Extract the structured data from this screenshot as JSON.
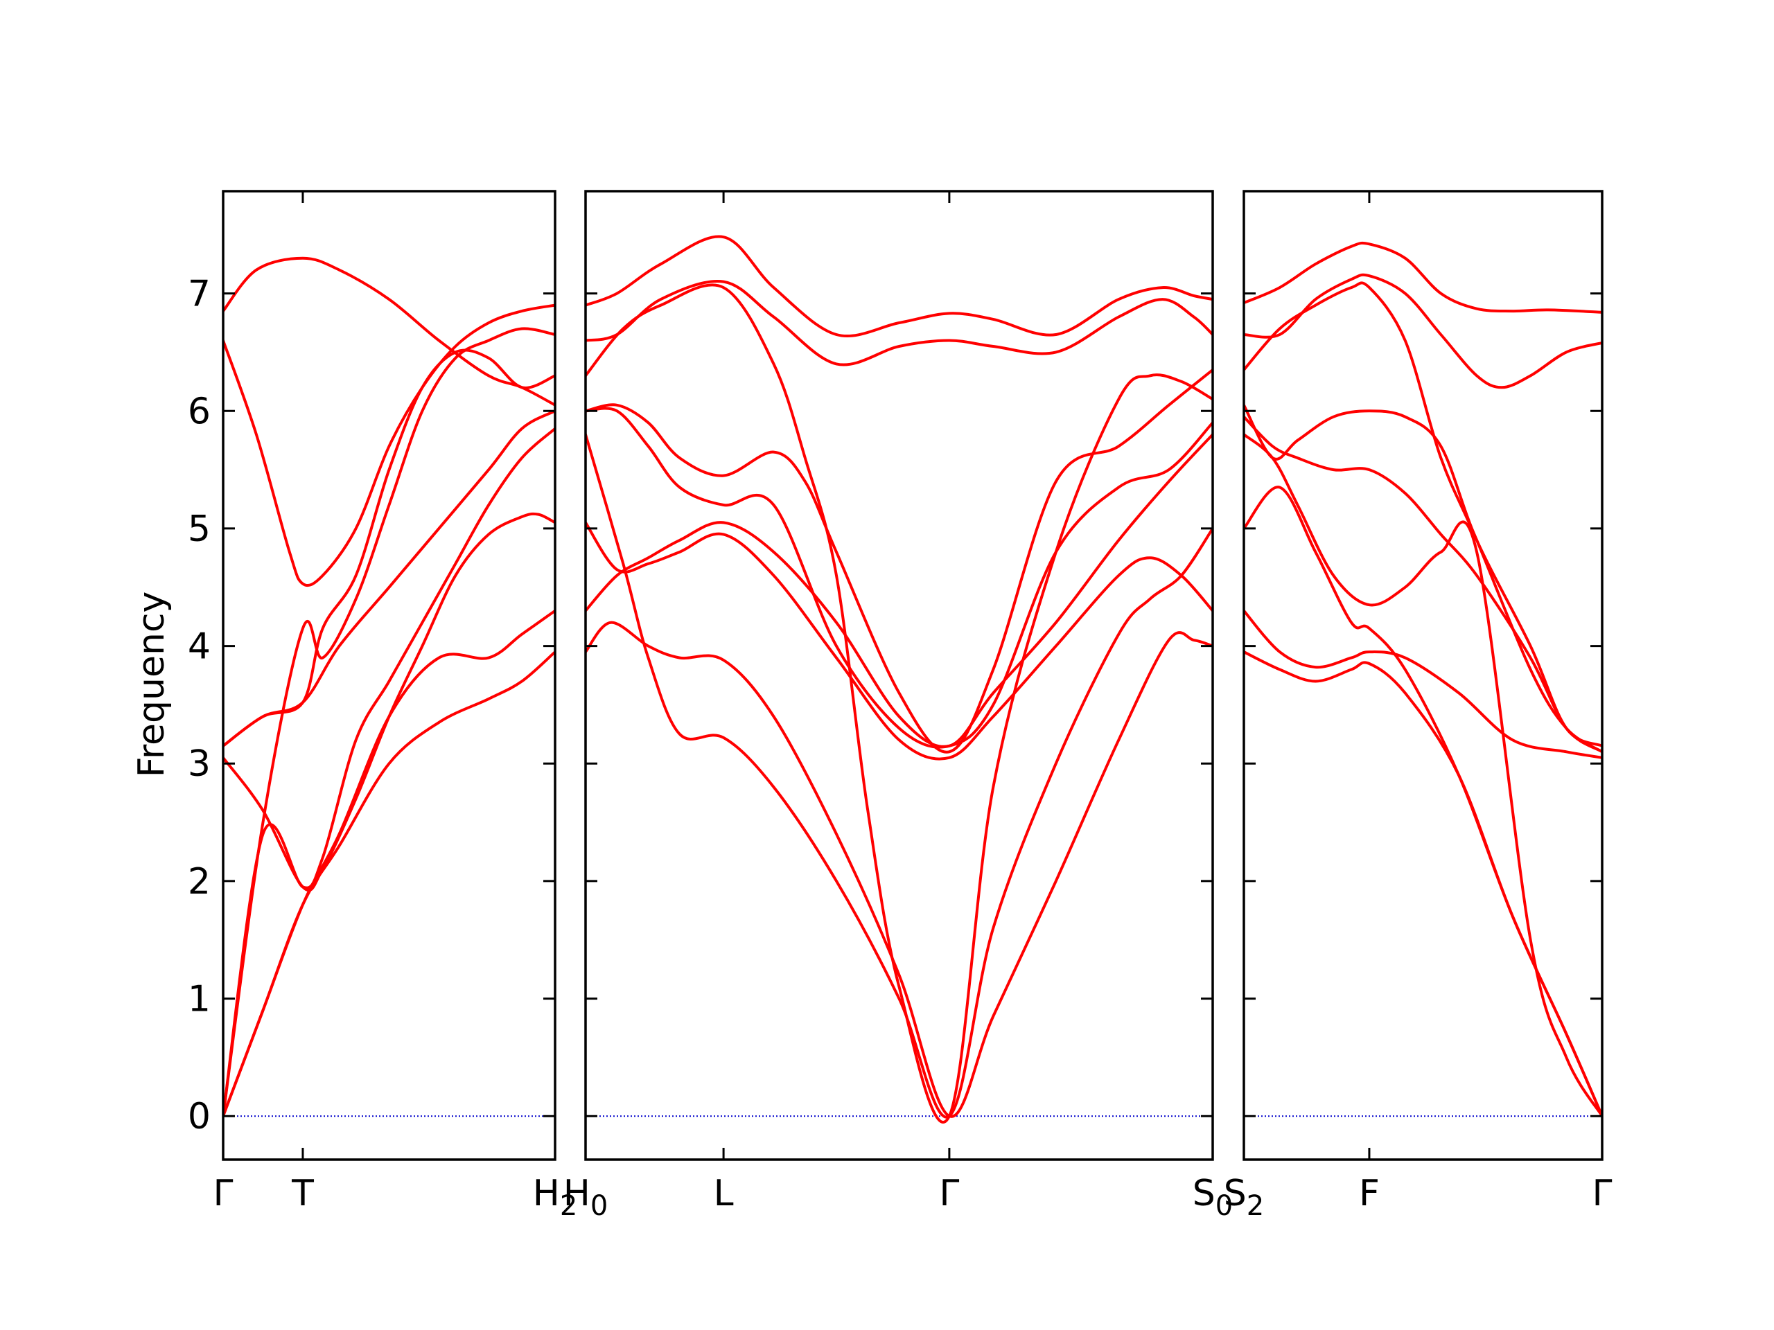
{
  "chart_data": {
    "type": "line",
    "ylabel": "Frequency",
    "ylim": [
      -0.37,
      7.87
    ],
    "yticks": [
      0,
      1,
      2,
      3,
      4,
      5,
      6,
      7
    ],
    "colors": {
      "bands": "#ff0000",
      "zero_line": "#0000cc",
      "axes": "#000000"
    },
    "grid": false,
    "zero_line": 0,
    "panels": [
      {
        "id": "panel-1",
        "xlim": [
          0,
          1
        ],
        "ticks": [
          {
            "x": 0.0,
            "label": "Γ",
            "sub": ""
          },
          {
            "x": 0.24,
            "label": "T",
            "sub": ""
          },
          {
            "x": 1.0,
            "label": "H",
            "sub": "2"
          }
        ],
        "series": [
          {
            "x": [
              0,
              0.12,
              0.24,
              0.35,
              0.5,
              0.65,
              0.8,
              0.9,
              1.0
            ],
            "y": [
              0.0,
              0.9,
              1.8,
              2.3,
              3.0,
              3.35,
              3.55,
              3.7,
              3.95
            ]
          },
          {
            "x": [
              0,
              0.12,
              0.24,
              0.35,
              0.5,
              0.65,
              0.8,
              0.9,
              1.0
            ],
            "y": [
              0.0,
              0.9,
              1.8,
              2.4,
              3.4,
              3.9,
              3.9,
              4.1,
              4.3
            ]
          },
          {
            "x": [
              0,
              0.12,
              0.24,
              0.3,
              0.4,
              0.5,
              0.6,
              0.7,
              0.8,
              0.9,
              0.95,
              1.0
            ],
            "y": [
              3.05,
              2.6,
              1.95,
              2.1,
              2.7,
              3.4,
              4.0,
              4.6,
              4.95,
              5.1,
              5.12,
              5.05
            ]
          },
          {
            "x": [
              0,
              0.12,
              0.24,
              0.3,
              0.4,
              0.5,
              0.6,
              0.7,
              0.8,
              0.9,
              1.0
            ],
            "y": [
              0.0,
              2.4,
              1.95,
              2.2,
              3.2,
              3.7,
              4.2,
              4.7,
              5.2,
              5.6,
              5.85
            ]
          },
          {
            "x": [
              0,
              0.12,
              0.24,
              0.35,
              0.5,
              0.65,
              0.8,
              0.9,
              1.0
            ],
            "y": [
              3.15,
              3.4,
              3.52,
              4.0,
              4.5,
              5.0,
              5.5,
              5.85,
              6.0
            ]
          },
          {
            "x": [
              0,
              0.12,
              0.24,
              0.3,
              0.4,
              0.5,
              0.6,
              0.7,
              0.8,
              0.9,
              1.0
            ],
            "y": [
              0.0,
              2.5,
              4.15,
              3.9,
              4.4,
              5.2,
              6.0,
              6.45,
              6.6,
              6.7,
              6.65
            ]
          },
          {
            "x": [
              0,
              0.12,
              0.24,
              0.3,
              0.4,
              0.5,
              0.6,
              0.7,
              0.8,
              0.9,
              1.0
            ],
            "y": [
              3.15,
              3.4,
              3.52,
              4.15,
              4.6,
              5.5,
              6.2,
              6.5,
              6.45,
              6.2,
              6.3
            ]
          },
          {
            "x": [
              0,
              0.1,
              0.2,
              0.24,
              0.3,
              0.4,
              0.5,
              0.6,
              0.7,
              0.8,
              0.9,
              1.0
            ],
            "y": [
              6.6,
              5.8,
              4.8,
              4.53,
              4.6,
              5.0,
              5.7,
              6.2,
              6.55,
              6.75,
              6.85,
              6.9
            ]
          },
          {
            "x": [
              0,
              0.1,
              0.24,
              0.35,
              0.5,
              0.65,
              0.8,
              0.9,
              1.0
            ],
            "y": [
              6.85,
              7.2,
              7.3,
              7.2,
              6.95,
              6.6,
              6.3,
              6.2,
              6.05
            ]
          }
        ]
      },
      {
        "id": "panel-2",
        "xlim": [
          0,
          1
        ],
        "ticks": [
          {
            "x": 0.0,
            "label": "H",
            "sub": "0"
          },
          {
            "x": 0.22,
            "label": "L",
            "sub": ""
          },
          {
            "x": 0.58,
            "label": "Γ",
            "sub": ""
          },
          {
            "x": 1.0,
            "label": "S",
            "sub": "0"
          }
        ],
        "series": [
          {
            "x": [
              0,
              0.04,
              0.1,
              0.15,
              0.22,
              0.3,
              0.4,
              0.5,
              0.58,
              0.65,
              0.75,
              0.85,
              0.93,
              0.97,
              1.0
            ],
            "y": [
              3.95,
              4.2,
              4.0,
              3.9,
              3.88,
              3.4,
              2.4,
              1.2,
              0.0,
              0.85,
              2.0,
              3.2,
              4.05,
              4.05,
              4.0
            ]
          },
          {
            "x": [
              0,
              0.06,
              0.1,
              0.15,
              0.22,
              0.3,
              0.4,
              0.5,
              0.58,
              0.65,
              0.75,
              0.85,
              0.9,
              0.95,
              1.0
            ],
            "y": [
              5.8,
              4.7,
              3.9,
              3.25,
              3.22,
              2.8,
              2.0,
              1.0,
              0.0,
              1.6,
              3.0,
              4.1,
              4.4,
              4.6,
              5.0
            ]
          },
          {
            "x": [
              0,
              0.05,
              0.1,
              0.15,
              0.22,
              0.3,
              0.4,
              0.5,
              0.58,
              0.65,
              0.75,
              0.85,
              0.9,
              0.95,
              1.0
            ],
            "y": [
              5.05,
              4.65,
              4.7,
              4.8,
              4.95,
              4.6,
              3.9,
              3.2,
              3.05,
              3.4,
              4.0,
              4.6,
              4.75,
              4.6,
              4.3
            ]
          },
          {
            "x": [
              0,
              0.05,
              0.1,
              0.15,
              0.22,
              0.3,
              0.4,
              0.5,
              0.58,
              0.65,
              0.75,
              0.85,
              0.93,
              1.0
            ],
            "y": [
              4.3,
              4.6,
              4.75,
              4.9,
              5.05,
              4.8,
              4.2,
              3.4,
              3.15,
              3.6,
              4.2,
              4.9,
              5.4,
              5.8
            ]
          },
          {
            "x": [
              0,
              0.05,
              0.1,
              0.15,
              0.22,
              0.3,
              0.4,
              0.5,
              0.58,
              0.65,
              0.75,
              0.85,
              0.93,
              1.0
            ],
            "y": [
              6.0,
              6.0,
              5.7,
              5.35,
              5.2,
              5.2,
              4.0,
              3.3,
              3.15,
              3.5,
              4.8,
              5.35,
              5.5,
              5.9
            ]
          },
          {
            "x": [
              0,
              0.05,
              0.1,
              0.15,
              0.22,
              0.3,
              0.35,
              0.4,
              0.5,
              0.58,
              0.65,
              0.75,
              0.85,
              0.93,
              1.0
            ],
            "y": [
              6.0,
              6.05,
              5.9,
              5.6,
              5.45,
              5.65,
              5.4,
              4.8,
              3.6,
              3.1,
              3.8,
              5.4,
              5.7,
              6.05,
              6.35
            ]
          },
          {
            "x": [
              0,
              0.06,
              0.12,
              0.22,
              0.3,
              0.35,
              0.4,
              0.45,
              0.5,
              0.58,
              0.65,
              0.75,
              0.85,
              0.9,
              0.95,
              1.0
            ],
            "y": [
              6.3,
              6.7,
              6.9,
              7.05,
              6.4,
              5.6,
              4.6,
              2.6,
              1.1,
              0.0,
              2.8,
              4.8,
              6.1,
              6.3,
              6.25,
              6.1
            ]
          },
          {
            "x": [
              0,
              0.05,
              0.12,
              0.22,
              0.3,
              0.4,
              0.5,
              0.58,
              0.65,
              0.75,
              0.85,
              0.92,
              0.97,
              1.0
            ],
            "y": [
              6.6,
              6.65,
              6.95,
              7.1,
              6.8,
              6.4,
              6.55,
              6.6,
              6.55,
              6.5,
              6.8,
              6.95,
              6.8,
              6.65
            ]
          },
          {
            "x": [
              0,
              0.05,
              0.12,
              0.22,
              0.3,
              0.4,
              0.5,
              0.58,
              0.65,
              0.75,
              0.85,
              0.92,
              0.97,
              1.0
            ],
            "y": [
              6.9,
              7.0,
              7.25,
              7.48,
              7.05,
              6.65,
              6.75,
              6.83,
              6.78,
              6.65,
              6.95,
              7.05,
              6.98,
              6.95
            ]
          }
        ]
      },
      {
        "id": "panel-3",
        "xlim": [
          0,
          1
        ],
        "ticks": [
          {
            "x": 0.0,
            "label": "S",
            "sub": "2"
          },
          {
            "x": 0.35,
            "label": "F",
            "sub": ""
          },
          {
            "x": 1.0,
            "label": "Γ",
            "sub": ""
          }
        ],
        "series": [
          {
            "x": [
              0,
              0.1,
              0.2,
              0.3,
              0.35,
              0.45,
              0.6,
              0.75,
              0.9,
              1.0
            ],
            "y": [
              3.95,
              3.8,
              3.7,
              3.8,
              3.85,
              3.6,
              2.9,
              1.7,
              0.7,
              0.0
            ]
          },
          {
            "x": [
              0,
              0.1,
              0.2,
              0.3,
              0.35,
              0.45,
              0.6,
              0.75,
              0.9,
              1.0
            ],
            "y": [
              4.3,
              3.95,
              3.82,
              3.9,
              3.95,
              3.9,
              3.6,
              3.2,
              3.1,
              3.05
            ]
          },
          {
            "x": [
              0,
              0.1,
              0.2,
              0.3,
              0.35,
              0.45,
              0.6,
              0.75,
              0.9,
              1.0
            ],
            "y": [
              5.0,
              5.35,
              4.8,
              4.2,
              4.15,
              3.8,
              2.9,
              1.7,
              0.7,
              0.0
            ]
          },
          {
            "x": [
              0,
              0.08,
              0.15,
              0.25,
              0.35,
              0.45,
              0.55,
              0.65,
              0.8,
              0.9,
              1.0
            ],
            "y": [
              5.8,
              5.6,
              5.2,
              4.6,
              4.35,
              4.5,
              4.8,
              4.8,
              1.5,
              0.5,
              0.0
            ]
          },
          {
            "x": [
              0,
              0.08,
              0.15,
              0.25,
              0.35,
              0.45,
              0.55,
              0.65,
              0.8,
              0.9,
              1.0
            ],
            "y": [
              6.05,
              5.6,
              5.75,
              5.95,
              6.0,
              5.95,
              5.7,
              4.9,
              4.0,
              3.3,
              3.15
            ]
          },
          {
            "x": [
              0,
              0.08,
              0.15,
              0.25,
              0.35,
              0.45,
              0.55,
              0.65,
              0.8,
              0.9,
              1.0
            ],
            "y": [
              5.95,
              5.7,
              5.6,
              5.5,
              5.5,
              5.3,
              4.95,
              4.6,
              3.9,
              3.3,
              3.1
            ]
          },
          {
            "x": [
              0,
              0.1,
              0.2,
              0.3,
              0.35,
              0.45,
              0.55,
              0.65,
              0.8,
              0.9,
              1.0
            ],
            "y": [
              6.35,
              6.7,
              6.9,
              7.05,
              7.05,
              6.6,
              5.6,
              4.9,
              3.8,
              3.3,
              3.1
            ]
          },
          {
            "x": [
              0,
              0.1,
              0.2,
              0.3,
              0.35,
              0.45,
              0.55,
              0.65,
              0.72,
              0.8,
              0.9,
              1.0
            ],
            "y": [
              6.65,
              6.65,
              6.95,
              7.12,
              7.15,
              7.0,
              6.65,
              6.3,
              6.2,
              6.3,
              6.5,
              6.58
            ]
          },
          {
            "x": [
              0,
              0.1,
              0.2,
              0.3,
              0.35,
              0.45,
              0.55,
              0.65,
              0.75,
              0.85,
              1.0
            ],
            "y": [
              6.92,
              7.05,
              7.25,
              7.4,
              7.42,
              7.3,
              7.0,
              6.87,
              6.85,
              6.86,
              6.84
            ]
          }
        ]
      }
    ]
  }
}
